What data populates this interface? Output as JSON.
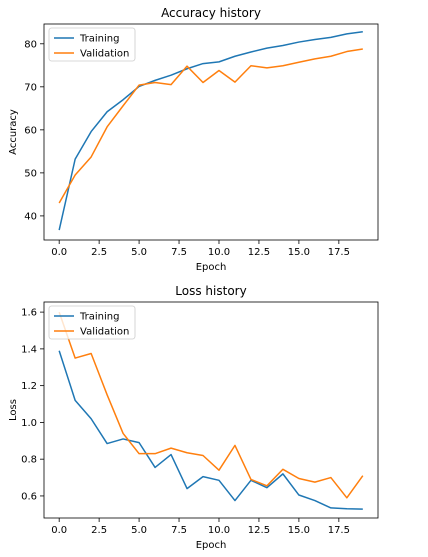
{
  "chart_data": [
    {
      "type": "line",
      "title": "Accuracy history",
      "xlabel": "Epoch",
      "ylabel": "Accuracy",
      "xlim": [
        -0.95,
        19.95
      ],
      "ylim": [
        34.4,
        84.6
      ],
      "xticks": [
        0.0,
        2.5,
        5.0,
        7.5,
        10.0,
        12.5,
        15.0,
        17.5
      ],
      "xtick_labels": [
        "0.0",
        "2.5",
        "5.0",
        "7.5",
        "10.0",
        "12.5",
        "15.0",
        "17.5"
      ],
      "yticks": [
        40,
        50,
        60,
        70,
        80
      ],
      "ytick_labels": [
        "40",
        "50",
        "60",
        "70",
        "80"
      ],
      "grid": false,
      "legend_position": "top-left",
      "x": [
        0,
        1,
        2,
        3,
        4,
        5,
        6,
        7,
        8,
        9,
        10,
        11,
        12,
        13,
        14,
        15,
        16,
        17,
        18,
        19
      ],
      "series": [
        {
          "name": "Training",
          "color": "#1f77b4",
          "values": [
            36.7,
            53.2,
            59.6,
            64.2,
            67.0,
            70.1,
            71.5,
            72.7,
            74.2,
            75.4,
            75.8,
            77.1,
            78.1,
            79.0,
            79.6,
            80.4,
            81.0,
            81.5,
            82.3,
            82.8
          ]
        },
        {
          "name": "Validation",
          "color": "#ff7f0e",
          "values": [
            43.0,
            49.5,
            53.7,
            60.7,
            65.6,
            70.4,
            71.0,
            70.5,
            74.8,
            71.0,
            73.8,
            71.1,
            74.9,
            74.4,
            74.9,
            75.7,
            76.5,
            77.1,
            78.2,
            78.8
          ]
        }
      ]
    },
    {
      "type": "line",
      "title": "Loss history",
      "xlabel": "Epoch",
      "ylabel": "Loss",
      "xlim": [
        -0.95,
        19.95
      ],
      "ylim": [
        0.48,
        1.655
      ],
      "xticks": [
        0.0,
        2.5,
        5.0,
        7.5,
        10.0,
        12.5,
        15.0,
        17.5
      ],
      "xtick_labels": [
        "0.0",
        "2.5",
        "5.0",
        "7.5",
        "10.0",
        "12.5",
        "15.0",
        "17.5"
      ],
      "yticks": [
        0.6,
        0.8,
        1.0,
        1.2,
        1.4,
        1.6
      ],
      "ytick_labels": [
        "0.6",
        "0.8",
        "1.0",
        "1.2",
        "1.4",
        "1.6"
      ],
      "grid": false,
      "legend_position": "top-left",
      "x": [
        0,
        1,
        2,
        3,
        4,
        5,
        6,
        7,
        8,
        9,
        10,
        11,
        12,
        13,
        14,
        15,
        16,
        17,
        18,
        19
      ],
      "series": [
        {
          "name": "Training",
          "color": "#1f77b4",
          "values": [
            1.39,
            1.12,
            1.02,
            0.885,
            0.91,
            0.89,
            0.755,
            0.825,
            0.64,
            0.705,
            0.685,
            0.575,
            0.685,
            0.645,
            0.72,
            0.605,
            0.575,
            0.535,
            0.53,
            0.528
          ]
        },
        {
          "name": "Validation",
          "color": "#ff7f0e",
          "values": [
            1.6,
            1.35,
            1.375,
            1.15,
            0.94,
            0.83,
            0.83,
            0.86,
            0.835,
            0.82,
            0.74,
            0.875,
            0.69,
            0.655,
            0.745,
            0.695,
            0.675,
            0.7,
            0.59,
            0.71
          ]
        }
      ]
    }
  ]
}
